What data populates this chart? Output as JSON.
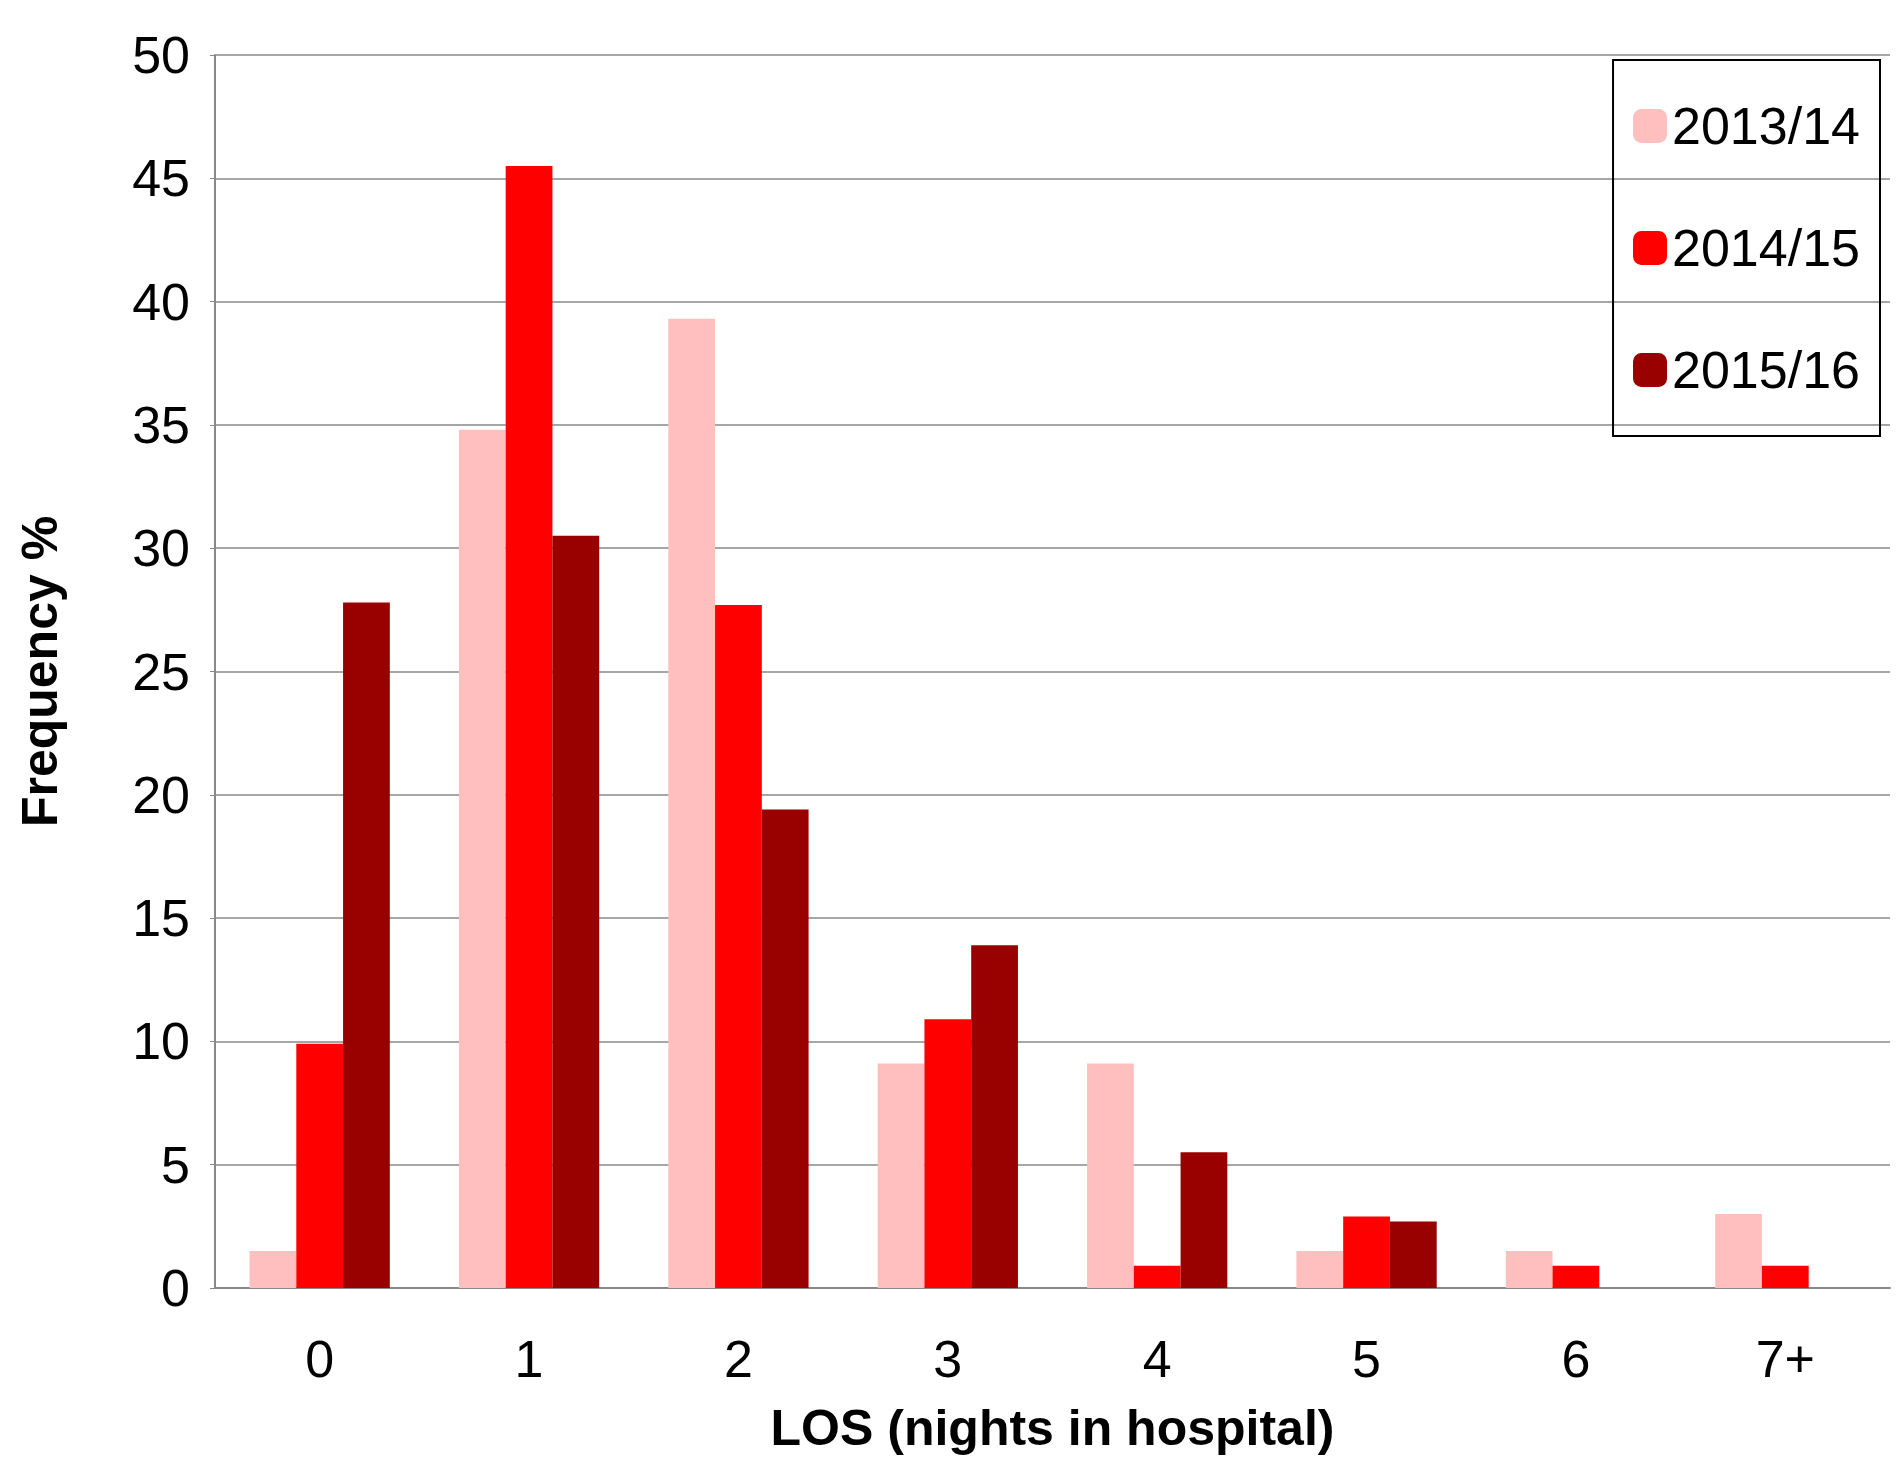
{
  "chart_data": {
    "type": "bar",
    "xlabel": "LOS (nights in hospital)",
    "ylabel": "Frequency %",
    "categories": [
      "0",
      "1",
      "2",
      "3",
      "4",
      "5",
      "6",
      "7+"
    ],
    "series": [
      {
        "name": "2013/14",
        "color": "#ffbfbf",
        "values": [
          1.5,
          34.8,
          39.3,
          9.1,
          9.1,
          1.5,
          1.5,
          3.0
        ]
      },
      {
        "name": "2014/15",
        "color": "#ff0000",
        "values": [
          9.9,
          45.5,
          27.7,
          10.9,
          0.9,
          2.9,
          0.9,
          0.9
        ]
      },
      {
        "name": "2015/16",
        "color": "#990000",
        "values": [
          27.8,
          30.5,
          19.4,
          13.9,
          5.5,
          2.7,
          0,
          0
        ]
      }
    ],
    "ylim": [
      0,
      50
    ],
    "yticks": [
      0,
      5,
      10,
      15,
      20,
      25,
      30,
      35,
      40,
      45,
      50
    ],
    "grid": "y",
    "legend": "top right"
  }
}
